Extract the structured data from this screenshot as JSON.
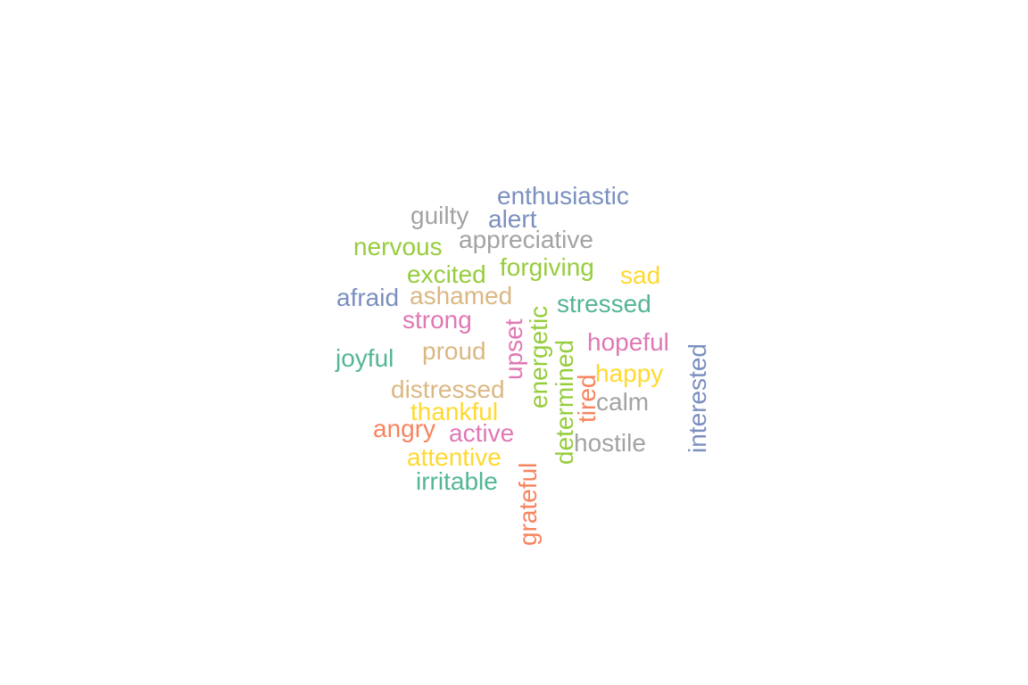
{
  "word_cloud": {
    "palette": {
      "blue": "#7b8fbf",
      "grey": "#a3a3a3",
      "green": "#96cd3c",
      "yellow": "#ffd92f",
      "pink": "#e078b4",
      "tan": "#dbb883",
      "teal": "#53b694",
      "orange": "#f7845f"
    },
    "words": [
      {
        "text": "enthusiastic",
        "color": "#7b8fbf",
        "orientation": "horizontal"
      },
      {
        "text": "guilty",
        "color": "#a3a3a3",
        "orientation": "horizontal"
      },
      {
        "text": "alert",
        "color": "#7b8fbf",
        "orientation": "horizontal"
      },
      {
        "text": "nervous",
        "color": "#96cd3c",
        "orientation": "horizontal"
      },
      {
        "text": "appreciative",
        "color": "#a3a3a3",
        "orientation": "horizontal"
      },
      {
        "text": "excited",
        "color": "#96cd3c",
        "orientation": "horizontal"
      },
      {
        "text": "forgiving",
        "color": "#96cd3c",
        "orientation": "horizontal"
      },
      {
        "text": "sad",
        "color": "#ffd92f",
        "orientation": "horizontal"
      },
      {
        "text": "afraid",
        "color": "#7b8fbf",
        "orientation": "horizontal"
      },
      {
        "text": "ashamed",
        "color": "#dbb883",
        "orientation": "horizontal"
      },
      {
        "text": "stressed",
        "color": "#53b694",
        "orientation": "horizontal"
      },
      {
        "text": "strong",
        "color": "#e078b4",
        "orientation": "horizontal"
      },
      {
        "text": "hopeful",
        "color": "#e078b4",
        "orientation": "horizontal"
      },
      {
        "text": "proud",
        "color": "#dbb883",
        "orientation": "horizontal"
      },
      {
        "text": "joyful",
        "color": "#53b694",
        "orientation": "horizontal"
      },
      {
        "text": "happy",
        "color": "#ffd92f",
        "orientation": "horizontal"
      },
      {
        "text": "distressed",
        "color": "#dbb883",
        "orientation": "horizontal"
      },
      {
        "text": "calm",
        "color": "#a3a3a3",
        "orientation": "horizontal"
      },
      {
        "text": "thankful",
        "color": "#ffd92f",
        "orientation": "horizontal"
      },
      {
        "text": "angry",
        "color": "#f7845f",
        "orientation": "horizontal"
      },
      {
        "text": "active",
        "color": "#e078b4",
        "orientation": "horizontal"
      },
      {
        "text": "hostile",
        "color": "#a3a3a3",
        "orientation": "horizontal"
      },
      {
        "text": "attentive",
        "color": "#ffd92f",
        "orientation": "horizontal"
      },
      {
        "text": "irritable",
        "color": "#53b694",
        "orientation": "horizontal"
      },
      {
        "text": "upset",
        "color": "#e078b4",
        "orientation": "vertical"
      },
      {
        "text": "energetic",
        "color": "#96cd3c",
        "orientation": "vertical"
      },
      {
        "text": "determined",
        "color": "#96cd3c",
        "orientation": "vertical"
      },
      {
        "text": "tired",
        "color": "#f7845f",
        "orientation": "vertical"
      },
      {
        "text": "interested",
        "color": "#7b8fbf",
        "orientation": "vertical"
      },
      {
        "text": "grateful",
        "color": "#f7845f",
        "orientation": "vertical"
      }
    ]
  }
}
